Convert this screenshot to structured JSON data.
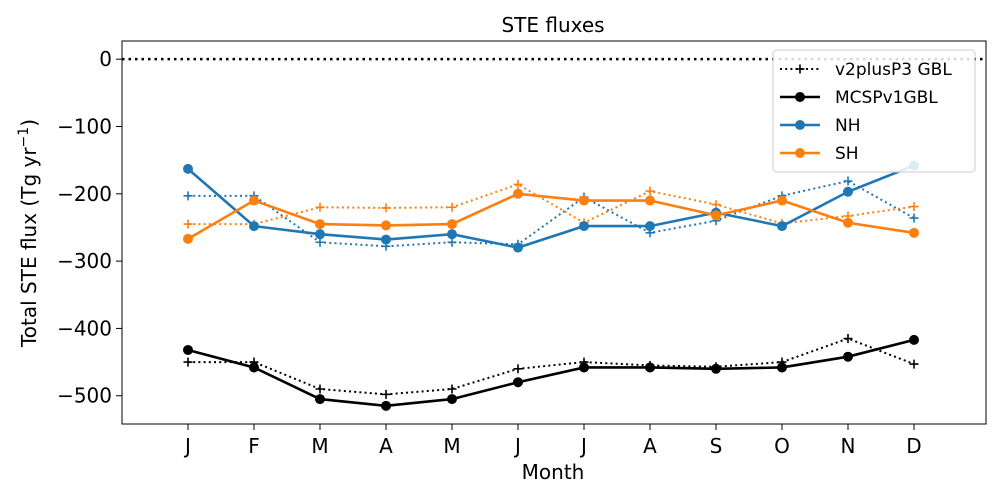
{
  "chart_data": {
    "type": "line",
    "title": "STE fluxes",
    "xlabel": "Month",
    "ylabel": "Total STE flux (Tg yr",
    "ylabel_sup": "−1",
    "ylabel_close": ")",
    "categories": [
      "J",
      "F",
      "M",
      "A",
      "M",
      "J",
      "J",
      "A",
      "S",
      "O",
      "N",
      "D"
    ],
    "ylim": [
      -542,
      27
    ],
    "yticks": [
      0,
      -100,
      -200,
      -300,
      -400,
      -500
    ],
    "ytick_labels": [
      "0",
      "−100",
      "−200",
      "−300",
      "−400",
      "−500"
    ],
    "zero_line": {
      "value": 0,
      "style": "dotted",
      "color": "#000000"
    },
    "grid": false,
    "legend_position": "top-right",
    "legend": [
      "v2plusP3 GBL",
      "MCSPv1GBL",
      "NH",
      "SH"
    ],
    "series": [
      {
        "name": "v2plusP3 GBL",
        "color": "#000000",
        "style": "dotted",
        "marker": "plus",
        "group": "v2",
        "values": [
          -450,
          -450,
          -490,
          -498,
          -490,
          -460,
          -450,
          -455,
          -457,
          -450,
          -415,
          -453
        ]
      },
      {
        "name": "MCSPv1GBL",
        "color": "#000000",
        "style": "solid",
        "marker": "circle",
        "group": "mcsp",
        "values": [
          -432,
          -458,
          -505,
          -515,
          -505,
          -480,
          -458,
          -458,
          -460,
          -458,
          -442,
          -417
        ]
      },
      {
        "name": "NH",
        "color": "#1f77b4",
        "style": "solid",
        "marker": "circle",
        "group": "mcsp",
        "values": [
          -163,
          -248,
          -260,
          -268,
          -260,
          -280,
          -248,
          -248,
          -228,
          -248,
          -197,
          -158
        ]
      },
      {
        "name": "SH",
        "color": "#ff7f0e",
        "style": "solid",
        "marker": "circle",
        "group": "mcsp",
        "values": [
          -267,
          -210,
          -245,
          -247,
          -245,
          -200,
          -210,
          -210,
          -232,
          -210,
          -243,
          -258
        ]
      },
      {
        "color": "#1f77b4",
        "style": "dotted",
        "marker": "plus",
        "group": "v2",
        "values": [
          -203,
          -203,
          -272,
          -278,
          -272,
          -275,
          -205,
          -258,
          -240,
          -203,
          -181,
          -236
        ]
      },
      {
        "color": "#ff7f0e",
        "style": "dotted",
        "marker": "plus",
        "group": "v2",
        "values": [
          -245,
          -245,
          -220,
          -221,
          -220,
          -186,
          -243,
          -196,
          -216,
          -244,
          -233,
          -219
        ]
      }
    ]
  }
}
